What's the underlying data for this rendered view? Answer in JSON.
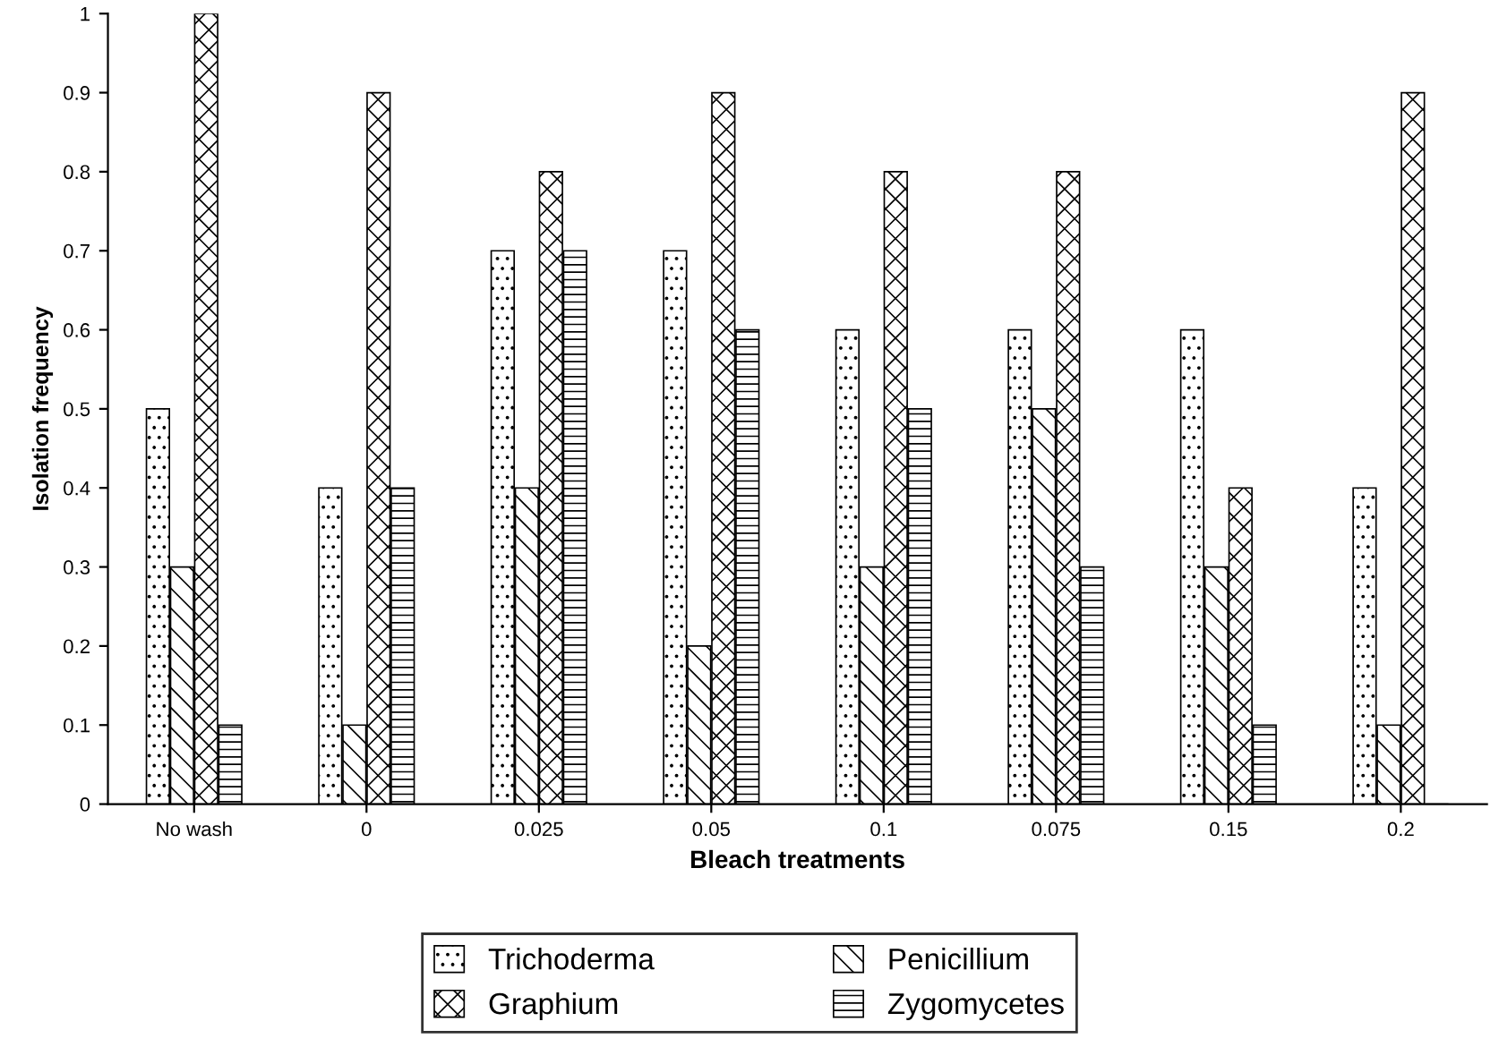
{
  "chart_data": {
    "type": "bar",
    "xlabel": "Bleach treatments",
    "ylabel": "Isolation frequency",
    "categories": [
      "No wash",
      "0",
      "0.025",
      "0.05",
      "0.1",
      "0.075",
      "0.15",
      "0.2"
    ],
    "series": [
      {
        "name": "Trichoderma",
        "values": [
          0.5,
          0.4,
          0.7,
          0.7,
          0.6,
          0.6,
          0.6,
          0.4
        ]
      },
      {
        "name": "Penicillium",
        "values": [
          0.3,
          0.1,
          0.4,
          0.2,
          0.3,
          0.5,
          0.3,
          0.1
        ]
      },
      {
        "name": "Graphium",
        "values": [
          1,
          0.9,
          0.8,
          0.9,
          0.8,
          0.8,
          0.4,
          0.9
        ]
      },
      {
        "name": "Zygomycetes",
        "values": [
          0.1,
          0.4,
          0.7,
          0.6,
          0.5,
          0.3,
          0.1,
          0
        ]
      }
    ],
    "ylim": [
      0,
      1
    ],
    "yticks": [
      0,
      0.1,
      0.2,
      0.3,
      0.4,
      0.5,
      0.6,
      0.7,
      0.8,
      0.9,
      1
    ],
    "grid": false,
    "legend": "bottom"
  }
}
